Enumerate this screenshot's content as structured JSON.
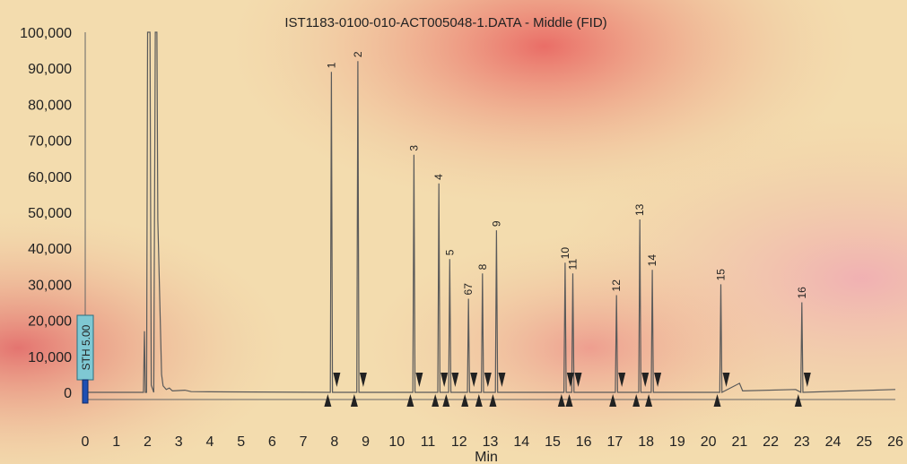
{
  "chart_data": {
    "type": "line",
    "title": "IST1183-0100-010-ACT005048-1.DATA - Middle (FID)",
    "xlabel": "Min",
    "ylabel": "",
    "xlim": [
      0,
      26
    ],
    "ylim": [
      0,
      100000
    ],
    "x_ticks": [
      "0",
      "1",
      "2",
      "3",
      "4",
      "5",
      "6",
      "7",
      "8",
      "9",
      "10",
      "11",
      "12",
      "13",
      "14",
      "15",
      "16",
      "17",
      "18",
      "19",
      "20",
      "21",
      "22",
      "23",
      "24",
      "25",
      "26"
    ],
    "y_ticks": [
      "0",
      "10,000",
      "20,000",
      "30,000",
      "40,000",
      "50,000",
      "60,000",
      "70,000",
      "80,000",
      "90,000",
      "100,000"
    ],
    "colors": {
      "trace": "#5a5a5a",
      "marker": "#222222",
      "sth_box": "#7fc8d3"
    },
    "sth_label": "STH 5.00",
    "solvent_peaks": [
      {
        "x": 1.9,
        "y": 17000
      },
      {
        "x": 2.0,
        "y": 100000
      },
      {
        "x": 2.25,
        "y": 100000
      }
    ],
    "peaks": [
      {
        "label": "1",
        "rt": 7.9,
        "height": 89000
      },
      {
        "label": "2",
        "rt": 8.75,
        "height": 92000
      },
      {
        "label": "3",
        "rt": 10.55,
        "height": 66000
      },
      {
        "label": "4",
        "rt": 11.35,
        "height": 58000
      },
      {
        "label": "5",
        "rt": 11.7,
        "height": 37000
      },
      {
        "label": "67",
        "rt": 12.3,
        "height": 26000
      },
      {
        "label": "8",
        "rt": 12.75,
        "height": 33000
      },
      {
        "label": "9",
        "rt": 13.2,
        "height": 45000
      },
      {
        "label": "10",
        "rt": 15.4,
        "height": 36000
      },
      {
        "label": "11",
        "rt": 15.65,
        "height": 33000
      },
      {
        "label": "12",
        "rt": 17.05,
        "height": 27000
      },
      {
        "label": "13",
        "rt": 17.8,
        "height": 48000
      },
      {
        "label": "14",
        "rt": 18.2,
        "height": 34000
      },
      {
        "label": "15",
        "rt": 20.4,
        "height": 30000
      },
      {
        "label": "16",
        "rt": 23.0,
        "height": 25000
      }
    ]
  }
}
